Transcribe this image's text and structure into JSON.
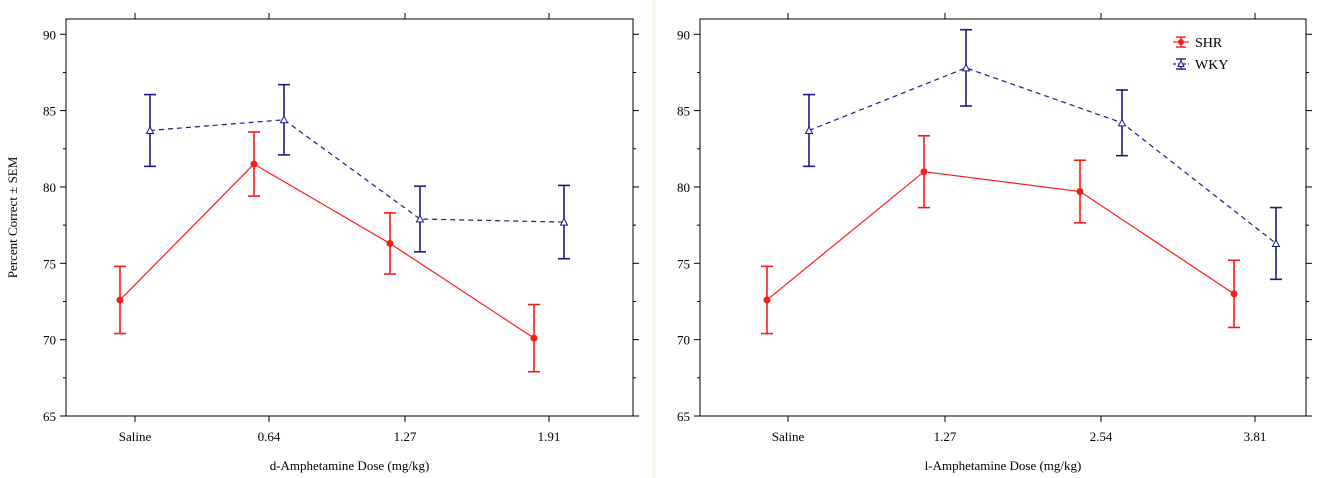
{
  "chart_data": [
    {
      "type": "line",
      "xlabel": "d-Amphetamine Dose (mg/kg)",
      "ylabel": "Percent Correct ± SEM",
      "categories": [
        "Saline",
        "0.64",
        "1.27",
        "1.91"
      ],
      "ylim": [
        65,
        91
      ],
      "yticks": [
        65,
        70,
        75,
        80,
        85,
        90
      ],
      "grid": false,
      "legend": null,
      "series": [
        {
          "name": "SHR",
          "color": "#ff1a1a",
          "line": "solid",
          "marker": "filled-circle",
          "values": [
            72.6,
            81.5,
            76.3,
            70.1
          ],
          "err": [
            2.2,
            2.1,
            2.0,
            2.2
          ]
        },
        {
          "name": "WKY",
          "color": "#1a1a8c",
          "line": "dashed",
          "marker": "open-triangle",
          "values": [
            83.7,
            84.4,
            77.9,
            77.7
          ],
          "err": [
            2.35,
            2.3,
            2.15,
            2.4
          ]
        }
      ]
    },
    {
      "type": "line",
      "xlabel": "l-Amphetamine Dose (mg/kg)",
      "ylabel": "",
      "categories": [
        "Saline",
        "1.27",
        "2.54",
        "3.81"
      ],
      "ylim": [
        65,
        91
      ],
      "yticks": [
        65,
        70,
        75,
        80,
        85,
        90
      ],
      "grid": false,
      "legend": "top-right",
      "series": [
        {
          "name": "SHR",
          "color": "#ff1a1a",
          "line": "solid",
          "marker": "filled-circle",
          "values": [
            72.6,
            81.0,
            79.7,
            73.0
          ],
          "err": [
            2.2,
            2.35,
            2.05,
            2.2
          ]
        },
        {
          "name": "WKY",
          "color": "#1a1a8c",
          "line": "dashed",
          "marker": "open-triangle",
          "values": [
            83.7,
            87.8,
            84.2,
            76.3
          ],
          "err": [
            2.35,
            2.5,
            2.15,
            2.35
          ]
        }
      ]
    }
  ]
}
